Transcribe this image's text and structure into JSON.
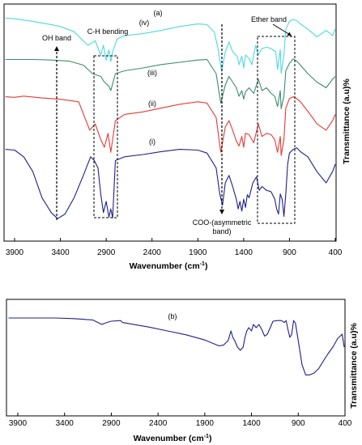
{
  "chart_data": [
    {
      "type": "line",
      "panel_label": "(a)",
      "xlabel_main": "Wavenumber (cm",
      "xlabel_sup": "-1",
      "xlabel_end": ")",
      "ylabel": "Transmittance (a.u)%",
      "x_ticks": [
        "3900",
        "3400",
        "2900",
        "2400",
        "1900",
        "1400",
        "900",
        "400"
      ],
      "xlim": [
        3900,
        400
      ],
      "annotations": {
        "oh_band": "OH band",
        "ch_bending": "C-H bending",
        "ether_band": "Ether band",
        "coo_line1": "COO-(asymmetric",
        "coo_line2": "band)"
      },
      "series": [
        {
          "name": "(iv)",
          "color": "#4dd9e0",
          "x": [
            4000,
            3900,
            3700,
            3500,
            3400,
            3250,
            3100,
            3020,
            2960,
            2930,
            2900,
            2870,
            2850,
            2830,
            2780,
            2700,
            2500,
            2300,
            2100,
            1900,
            1800,
            1720,
            1680,
            1640,
            1600,
            1560,
            1520,
            1470,
            1450,
            1420,
            1400,
            1380,
            1340,
            1310,
            1270,
            1240,
            1200,
            1150,
            1100,
            1050,
            1030,
            1000,
            990,
            960,
            940,
            900,
            860,
            820,
            780,
            700,
            600,
            500,
            430,
            400
          ],
          "y": [
            0.03,
            0.04,
            0.08,
            0.13,
            0.16,
            0.24,
            0.45,
            0.38,
            0.6,
            0.45,
            0.68,
            0.52,
            0.7,
            0.55,
            0.35,
            0.3,
            0.27,
            0.22,
            0.16,
            0.12,
            0.13,
            0.25,
            0.5,
            0.85,
            0.55,
            0.4,
            0.55,
            0.62,
            0.75,
            0.62,
            0.8,
            0.6,
            0.65,
            0.75,
            0.45,
            0.6,
            0.5,
            0.48,
            0.5,
            0.55,
            0.82,
            0.52,
            0.88,
            0.6,
            0.2,
            0.08,
            0.05,
            0.07,
            0.12,
            0.2,
            0.32,
            0.22,
            0.3,
            0.2
          ]
        },
        {
          "name": "(iii)",
          "color": "#3a8d6a",
          "x": [
            4000,
            3900,
            3700,
            3500,
            3300,
            3150,
            3050,
            2960,
            2920,
            2870,
            2850,
            2800,
            2700,
            2500,
            2300,
            2100,
            1900,
            1800,
            1700,
            1650,
            1600,
            1560,
            1520,
            1480,
            1450,
            1420,
            1400,
            1380,
            1340,
            1290,
            1240,
            1200,
            1150,
            1100,
            1060,
            1030,
            1000,
            990,
            960,
            940,
            900,
            860,
            820,
            780,
            700,
            600,
            500,
            430,
            400
          ],
          "y": [
            0.05,
            0.05,
            0.05,
            0.06,
            0.08,
            0.15,
            0.3,
            0.35,
            0.45,
            0.52,
            0.6,
            0.3,
            0.25,
            0.2,
            0.14,
            0.1,
            0.06,
            0.05,
            0.3,
            0.82,
            0.5,
            0.35,
            0.45,
            0.55,
            0.7,
            0.6,
            0.75,
            0.62,
            0.55,
            0.65,
            0.4,
            0.6,
            0.55,
            0.65,
            0.7,
            0.88,
            0.6,
            0.92,
            0.7,
            0.25,
            0.12,
            0.04,
            0.08,
            0.15,
            0.3,
            0.45,
            0.55,
            0.4,
            0.35
          ]
        },
        {
          "name": "(ii)",
          "color": "#e63a35",
          "x": [
            4000,
            3900,
            3800,
            3600,
            3400,
            3200,
            3080,
            3020,
            2960,
            2920,
            2880,
            2850,
            2800,
            2700,
            2500,
            2300,
            2100,
            1900,
            1800,
            1700,
            1650,
            1600,
            1560,
            1520,
            1480,
            1450,
            1420,
            1400,
            1380,
            1340,
            1290,
            1240,
            1200,
            1150,
            1100,
            1060,
            1030,
            1000,
            990,
            960,
            940,
            900,
            860,
            820,
            780,
            700,
            600,
            500,
            430,
            400
          ],
          "y": [
            0.02,
            0.03,
            0.01,
            0.04,
            0.06,
            0.1,
            0.55,
            0.45,
            0.7,
            0.82,
            0.6,
            0.9,
            0.4,
            0.3,
            0.26,
            0.2,
            0.14,
            0.1,
            0.12,
            0.35,
            0.9,
            0.5,
            0.4,
            0.55,
            0.72,
            0.8,
            0.65,
            0.82,
            0.6,
            0.62,
            0.75,
            0.45,
            0.65,
            0.6,
            0.62,
            0.7,
            0.9,
            0.65,
            0.95,
            0.7,
            0.2,
            0.05,
            0.02,
            0.05,
            0.1,
            0.25,
            0.45,
            0.55,
            0.4,
            0.3
          ]
        },
        {
          "name": "(i)",
          "color": "#1f1f8a",
          "x": [
            4000,
            3900,
            3800,
            3700,
            3600,
            3500,
            3430,
            3350,
            3250,
            3150,
            3070,
            3030,
            2990,
            2960,
            2930,
            2900,
            2870,
            2850,
            2830,
            2800,
            2700,
            2500,
            2300,
            2100,
            1900,
            1800,
            1700,
            1660,
            1630,
            1600,
            1560,
            1520,
            1480,
            1460,
            1440,
            1420,
            1400,
            1380,
            1360,
            1340,
            1300,
            1260,
            1230,
            1200,
            1150,
            1100,
            1060,
            1040,
            1020,
            1000,
            980,
            960,
            940,
            920,
            900,
            860,
            820,
            780,
            700,
            600,
            500,
            430,
            400
          ],
          "y": [
            0.05,
            0.06,
            0.15,
            0.35,
            0.7,
            0.9,
            0.98,
            0.92,
            0.7,
            0.4,
            0.15,
            0.2,
            0.3,
            0.65,
            0.9,
            0.75,
            0.96,
            0.85,
            0.97,
            0.2,
            0.15,
            0.12,
            0.08,
            0.05,
            0.06,
            0.1,
            0.3,
            0.65,
            0.8,
            0.5,
            0.4,
            0.55,
            0.72,
            0.85,
            0.75,
            0.88,
            0.72,
            0.83,
            0.66,
            0.7,
            0.5,
            0.42,
            0.6,
            0.55,
            0.6,
            0.62,
            0.72,
            0.85,
            0.92,
            0.65,
            0.72,
            0.95,
            0.65,
            0.25,
            0.1,
            0.05,
            0.03,
            0.08,
            0.15,
            0.35,
            0.5,
            0.35,
            0.25
          ]
        }
      ]
    },
    {
      "type": "line",
      "panel_label": "(b)",
      "xlabel_main": "Wavenumber (cm",
      "xlabel_sup": "-1",
      "xlabel_end": ")",
      "ylabel": "Transmittance (a.u)%",
      "x_ticks": [
        "3900",
        "3400",
        "2900",
        "2400",
        "1900",
        "1400",
        "900",
        "400"
      ],
      "xlim": [
        3900,
        400
      ],
      "series": [
        {
          "color": "#1f1f8a",
          "x": [
            4000,
            3900,
            3700,
            3500,
            3300,
            3100,
            3000,
            2950,
            2900,
            2800,
            2780,
            2700,
            2500,
            2300,
            2100,
            1900,
            1800,
            1750,
            1700,
            1650,
            1620,
            1600,
            1580,
            1550,
            1520,
            1490,
            1470,
            1450,
            1430,
            1400,
            1380,
            1350,
            1320,
            1290,
            1260,
            1230,
            1200,
            1170,
            1120,
            1080,
            1050,
            1030,
            1010,
            990,
            970,
            950,
            930,
            900,
            860,
            820,
            780,
            730,
            680,
            630,
            580,
            530,
            480,
            430,
            400
          ],
          "y": [
            0.1,
            0.1,
            0.1,
            0.1,
            0.11,
            0.13,
            0.2,
            0.17,
            0.15,
            0.14,
            0.17,
            0.19,
            0.24,
            0.3,
            0.36,
            0.44,
            0.5,
            0.53,
            0.52,
            0.45,
            0.3,
            0.4,
            0.45,
            0.55,
            0.6,
            0.55,
            0.4,
            0.3,
            0.25,
            0.3,
            0.2,
            0.25,
            0.2,
            0.28,
            0.38,
            0.35,
            0.25,
            0.15,
            0.14,
            0.14,
            0.17,
            0.14,
            0.28,
            0.4,
            0.35,
            0.14,
            0.18,
            0.45,
            0.82,
            0.98,
            0.98,
            0.95,
            0.88,
            0.76,
            0.65,
            0.55,
            0.42,
            0.35,
            0.55
          ]
        }
      ]
    }
  ]
}
